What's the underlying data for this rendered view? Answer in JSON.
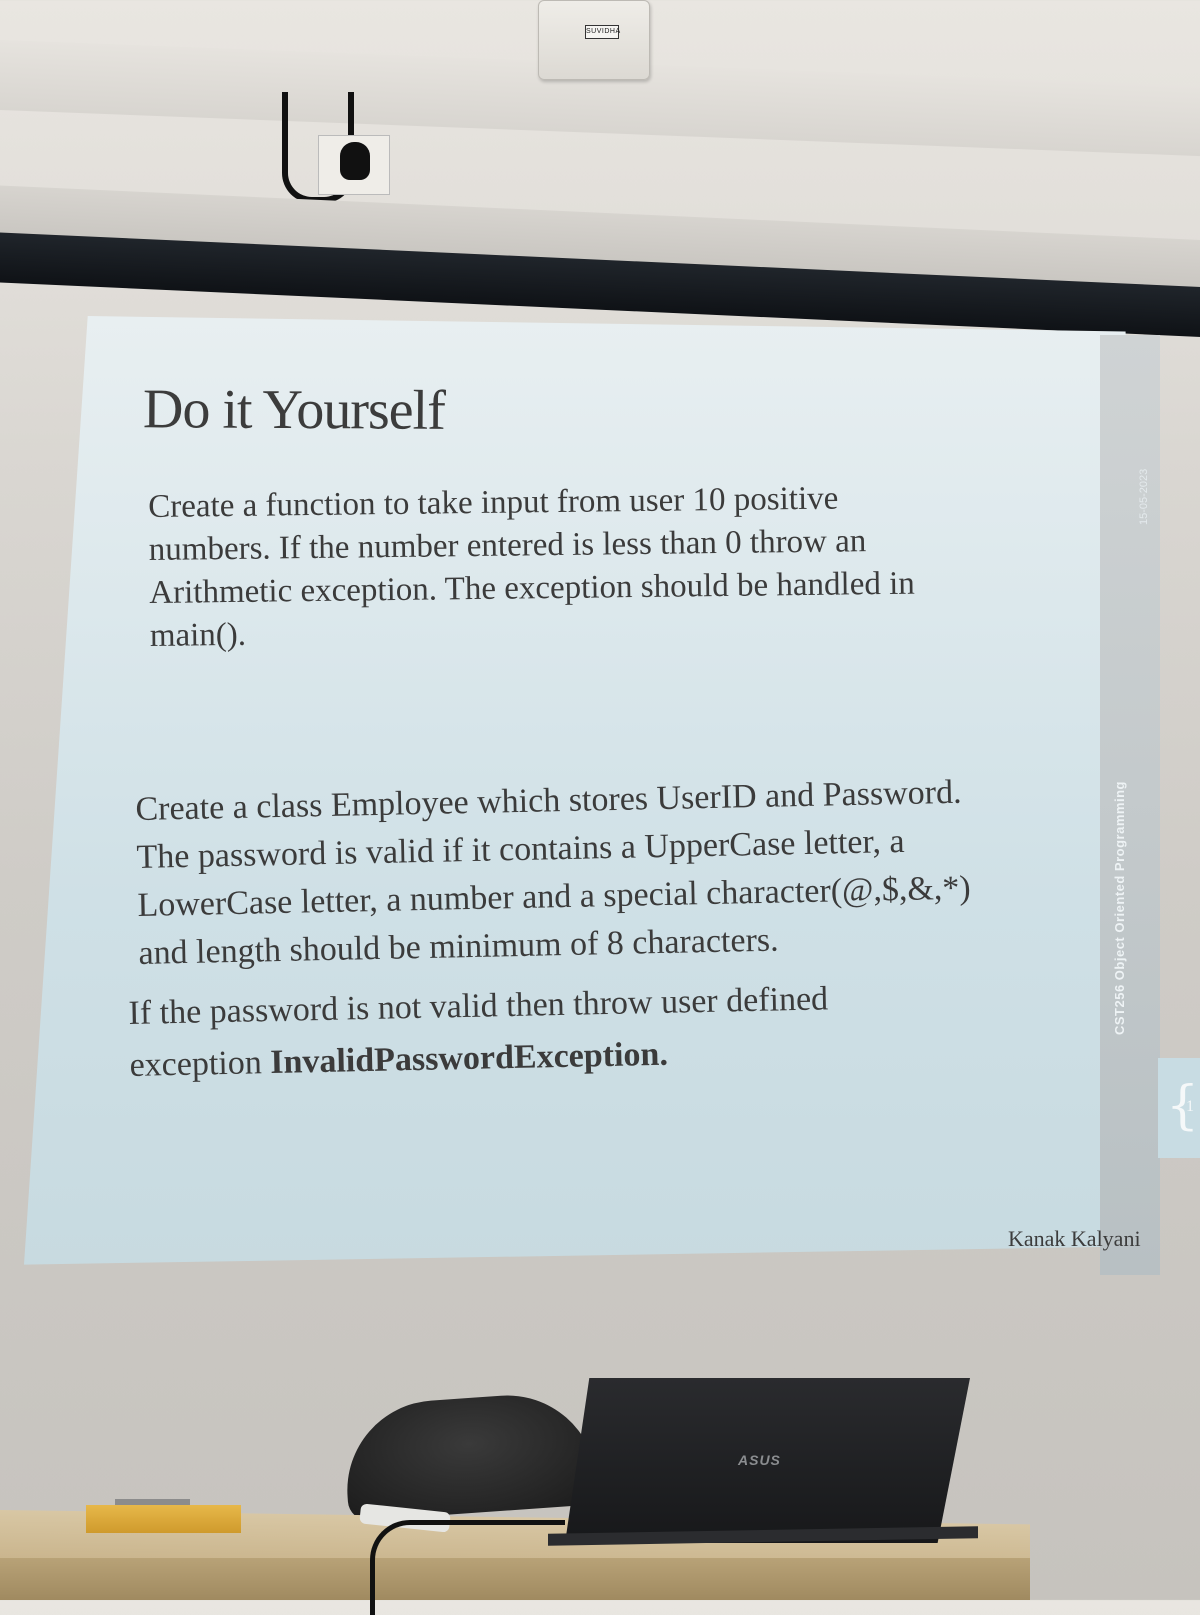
{
  "wall": {
    "switch_brand": "SUVIDHA"
  },
  "slide": {
    "title": "Do it Yourself",
    "paragraph1_lines": [
      "Create a function to take input from user 10 positive",
      "numbers. If the number entered is less than 0 throw an",
      "Arithmetic exception. The exception should be handled in",
      "main()."
    ],
    "paragraph2_lines": [
      "Create a class Employee which stores UserID and Password.",
      "The password is valid if it contains a UpperCase letter, a",
      "LowerCase letter, a number and a special character(@,$,&,*)",
      "and length should be minimum of 8 characters."
    ],
    "paragraph3_line1": "If the password is not valid then throw user defined",
    "paragraph3_line2_prefix": "exception ",
    "paragraph3_line2_bold": "InvalidPasswordException",
    "paragraph3_line2_suffix": ".",
    "author": "Kanak Kalyani",
    "side_label": "CST256 Object Oriented Programming",
    "side_date": "15-05-2023",
    "side_page": "1"
  },
  "laptop": {
    "logo": "ASUS"
  }
}
